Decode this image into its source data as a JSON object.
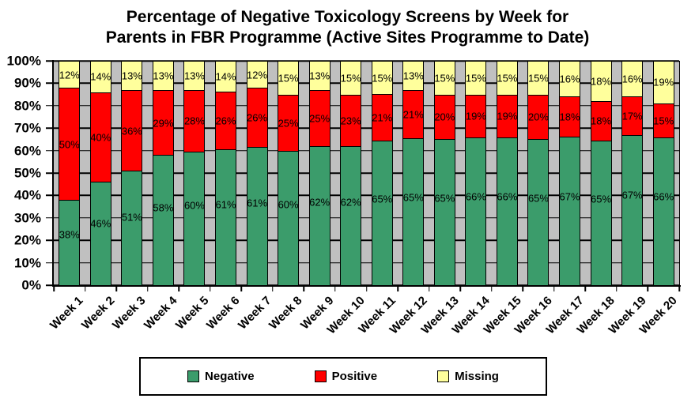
{
  "title": {
    "line1": "Percentage of Negative Toxicology Screens by Week for",
    "line2": "Parents in FBR Programme (Active Sites Programme to Date)"
  },
  "chart_data": {
    "type": "bar",
    "stacked": true,
    "units": "percent",
    "title": "Percentage of Negative Toxicology Screens by Week for Parents in FBR Programme (Active Sites Programme to Date)",
    "categories": [
      "Week 1",
      "Week 2",
      "Week 3",
      "Week 4",
      "Week 5",
      "Week 6",
      "Week 7",
      "Week 8",
      "Week 9",
      "Week 10",
      "Week 11",
      "Week 12",
      "Week 13",
      "Week 14",
      "Week 15",
      "Week 16",
      "Week 17",
      "Week 18",
      "Week 19",
      "Week 20"
    ],
    "series": [
      {
        "name": "Negative",
        "color": "#3B9C6B",
        "values": [
          38,
          46,
          51,
          58,
          60,
          61,
          61,
          60,
          62,
          62,
          65,
          65,
          65,
          66,
          66,
          65,
          67,
          65,
          67,
          66
        ]
      },
      {
        "name": "Positive",
        "color": "#FF0000",
        "values": [
          50,
          40,
          36,
          29,
          28,
          26,
          26,
          25,
          25,
          23,
          21,
          21,
          20,
          19,
          19,
          20,
          18,
          18,
          17,
          15
        ]
      },
      {
        "name": "Missing",
        "color": "#FFFF9C",
        "values": [
          12,
          14,
          13,
          13,
          13,
          14,
          12,
          15,
          13,
          15,
          15,
          13,
          15,
          15,
          15,
          15,
          16,
          18,
          16,
          19
        ]
      }
    ],
    "y_ticks": [
      "0%",
      "10%",
      "20%",
      "30%",
      "40%",
      "50%",
      "60%",
      "70%",
      "80%",
      "90%",
      "100%"
    ],
    "ylim": [
      0,
      100
    ],
    "gridlines": "horizontal",
    "plot_background": "#C0C0C0",
    "bar_border_color": "#000000",
    "legend_position": "bottom",
    "data_labels": "inside, value + %"
  }
}
